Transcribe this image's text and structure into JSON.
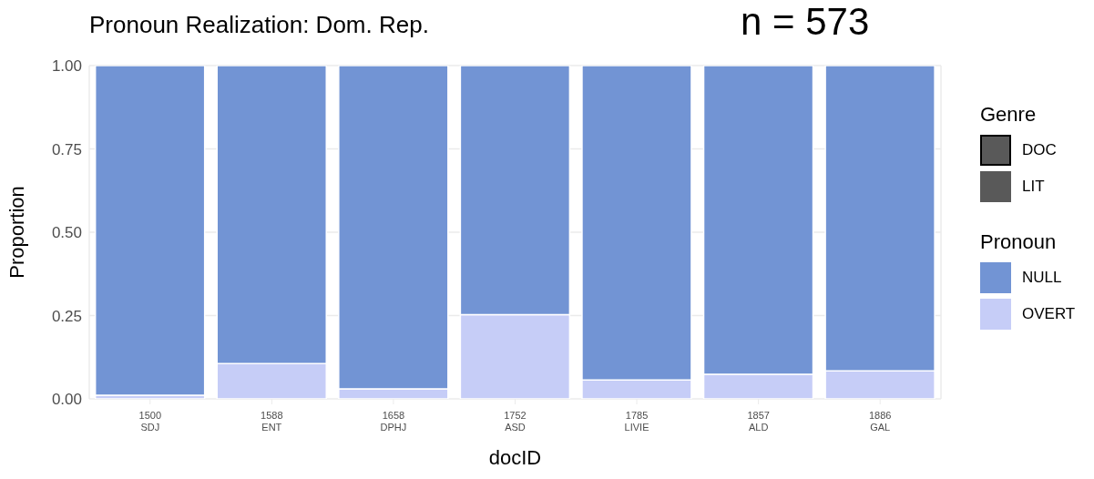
{
  "chart_data": {
    "type": "bar",
    "title": "Pronoun Realization: Dom. Rep.",
    "xlabel": "docID",
    "ylabel": "Proportion",
    "legend_title": "Pronoun",
    "stacked": true,
    "grid": true,
    "legend": "right",
    "categories": [
      "1500\nSDJ",
      "1588\nENT",
      "1658\nDPHJ",
      "1752\nASD",
      "1785\nLIVIE",
      "1857\nALD",
      "1886\nGAL"
    ],
    "series": [
      {
        "name": "OVERT",
        "color": "#c6cdf7",
        "values": [
          0.011,
          0.106,
          0.03,
          0.253,
          0.057,
          0.074,
          0.084
        ]
      },
      {
        "name": "NULL",
        "color": "#7294d4",
        "values": [
          0.989,
          0.894,
          0.97,
          0.747,
          0.943,
          0.926,
          0.916
        ]
      }
    ],
    "ylim": [
      0,
      1
    ],
    "yticks": [
      {
        "value": 0,
        "label": "0.00"
      },
      {
        "value": 0.25,
        "label": "0.25"
      },
      {
        "value": 0.5,
        "label": "0.50"
      },
      {
        "value": 0.75,
        "label": "0.75"
      },
      {
        "value": 1,
        "label": "1.00"
      }
    ],
    "annotations": [
      "n = 573",
      "Genre",
      "DOC",
      "LIT"
    ]
  }
}
